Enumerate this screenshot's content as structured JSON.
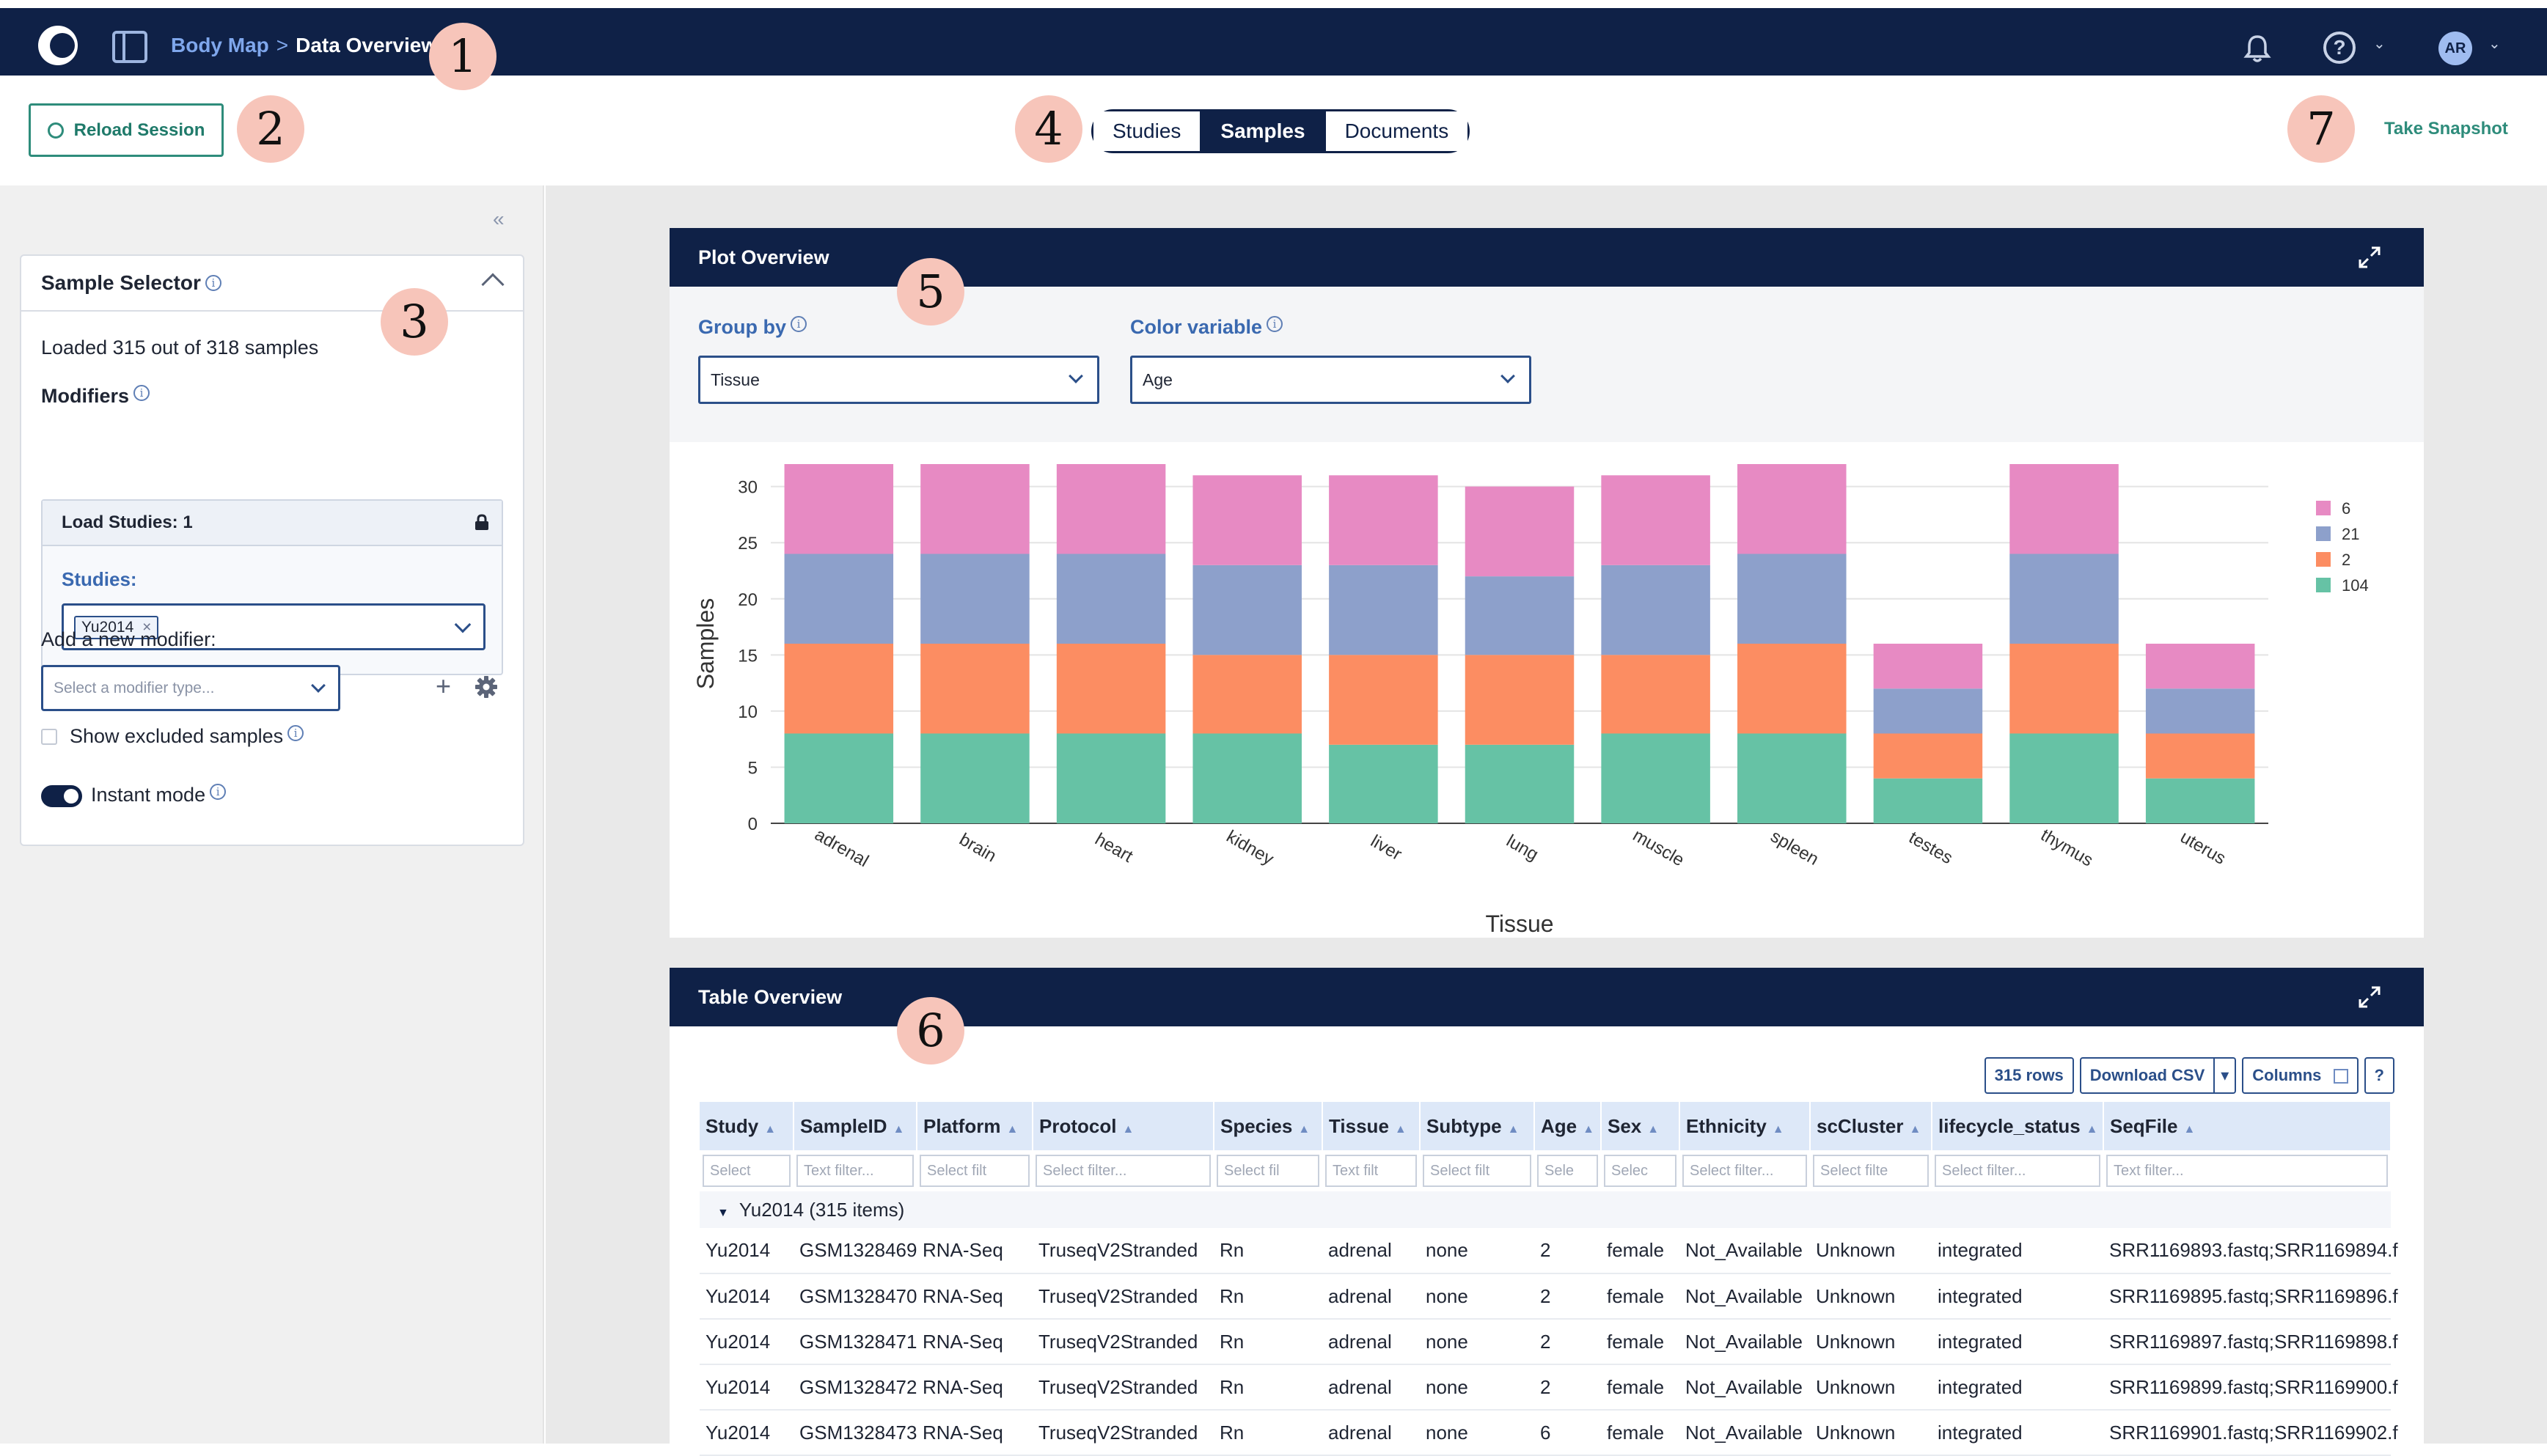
{
  "header": {
    "breadcrumb_root": "Body Map",
    "breadcrumb_sep": ">",
    "breadcrumb_current": "Data Overview",
    "avatar_initials": "AR",
    "help_glyph": "?"
  },
  "toolbar": {
    "reload_label": "Reload Session",
    "tabs": [
      {
        "label": "Studies",
        "active": false
      },
      {
        "label": "Samples",
        "active": true
      },
      {
        "label": "Documents",
        "active": false
      }
    ],
    "snapshot_label": "Take Snapshot"
  },
  "callouts": [
    "1",
    "2",
    "3",
    "4",
    "5",
    "6",
    "7"
  ],
  "sidebar": {
    "collapse_glyph": "«",
    "title": "Sample Selector",
    "loaded_text": "Loaded 315 out of 318 samples",
    "modifiers_label": "Modifiers",
    "load_studies_label": "Load Studies: 1",
    "studies_label": "Studies:",
    "study_chip": "Yu2014",
    "chip_remove_glyph": "×",
    "add_modifier_label": "Add a new modifier:",
    "modifier_placeholder": "Select a modifier type...",
    "add_glyph": "+",
    "show_excluded_label": "Show excluded samples",
    "instant_mode_label": "Instant mode"
  },
  "plot": {
    "title": "Plot Overview",
    "group_by_label": "Group by",
    "group_by_value": "Tissue",
    "color_label": "Color variable",
    "color_value": "Age"
  },
  "chart_data": {
    "type": "bar",
    "stacked": true,
    "xlabel": "Tissue",
    "ylabel": "Samples",
    "ylim": [
      0,
      32
    ],
    "yticks": [
      0,
      5,
      10,
      15,
      20,
      25,
      30
    ],
    "categories": [
      "adrenal",
      "brain",
      "heart",
      "kidney",
      "liver",
      "lung",
      "muscle",
      "spleen",
      "testes",
      "thymus",
      "uterus"
    ],
    "series": [
      {
        "name": "104",
        "color": "#66c2a5",
        "values": [
          8,
          8,
          8,
          8,
          7,
          7,
          8,
          8,
          4,
          8,
          4
        ]
      },
      {
        "name": "2",
        "color": "#fc8d62",
        "values": [
          8,
          8,
          8,
          7,
          8,
          8,
          7,
          8,
          4,
          8,
          4
        ]
      },
      {
        "name": "21",
        "color": "#8da0cb",
        "values": [
          8,
          8,
          8,
          8,
          8,
          7,
          8,
          8,
          4,
          8,
          4
        ]
      },
      {
        "name": "6",
        "color": "#e78ac3",
        "values": [
          8,
          8,
          8,
          8,
          8,
          8,
          8,
          8,
          4,
          8,
          4
        ]
      }
    ],
    "legend_order": [
      "6",
      "21",
      "2",
      "104"
    ],
    "legend_position": "right",
    "grid": true
  },
  "table": {
    "title": "Table Overview",
    "rows_label": "315 rows",
    "download_label": "Download CSV",
    "dropdown_glyph": "▾",
    "columns_label": "Columns",
    "help_label": "?",
    "sort_glyph": "▲",
    "columns": [
      "Study",
      "SampleID",
      "Platform",
      "Protocol",
      "Species",
      "Tissue",
      "Subtype",
      "Age",
      "Sex",
      "Ethnicity",
      "scCluster",
      "lifecycle_status",
      "SeqFile"
    ],
    "filters": [
      "Select",
      "Text filter...",
      "Select filt",
      "Select filter...",
      "Select fil",
      "Text filt",
      "Select filt",
      "Sele",
      "Selec",
      "Select filter...",
      "Select filte",
      "Select filter...",
      "Text filter..."
    ],
    "group_label": "Yu2014  (315 items)",
    "rows": [
      [
        "Yu2014",
        "GSM1328469",
        "RNA-Seq",
        "TruseqV2Stranded",
        "Rn",
        "adrenal",
        "none",
        "2",
        "female",
        "Not_Available",
        "Unknown",
        "integrated",
        "SRR1169893.fastq;SRR1169894.f"
      ],
      [
        "Yu2014",
        "GSM1328470",
        "RNA-Seq",
        "TruseqV2Stranded",
        "Rn",
        "adrenal",
        "none",
        "2",
        "female",
        "Not_Available",
        "Unknown",
        "integrated",
        "SRR1169895.fastq;SRR1169896.f"
      ],
      [
        "Yu2014",
        "GSM1328471",
        "RNA-Seq",
        "TruseqV2Stranded",
        "Rn",
        "adrenal",
        "none",
        "2",
        "female",
        "Not_Available",
        "Unknown",
        "integrated",
        "SRR1169897.fastq;SRR1169898.f"
      ],
      [
        "Yu2014",
        "GSM1328472",
        "RNA-Seq",
        "TruseqV2Stranded",
        "Rn",
        "adrenal",
        "none",
        "2",
        "female",
        "Not_Available",
        "Unknown",
        "integrated",
        "SRR1169899.fastq;SRR1169900.f"
      ],
      [
        "Yu2014",
        "GSM1328473",
        "RNA-Seq",
        "TruseqV2Stranded",
        "Rn",
        "adrenal",
        "none",
        "6",
        "female",
        "Not_Available",
        "Unknown",
        "integrated",
        "SRR1169901.fastq;SRR1169902.f"
      ]
    ]
  },
  "colors": {
    "navy": "#0f2147",
    "accent_teal": "#2e8c7b",
    "label_blue": "#3a69b0",
    "callout_fill": "#f7c5ba"
  },
  "icons": [
    "logo-icon",
    "sidebar-toggle-icon",
    "bell-icon",
    "help-icon",
    "avatar",
    "clock-icon",
    "lock-icon",
    "gear-icon",
    "expand-icon",
    "info-icon",
    "calendar-grid-icon"
  ]
}
